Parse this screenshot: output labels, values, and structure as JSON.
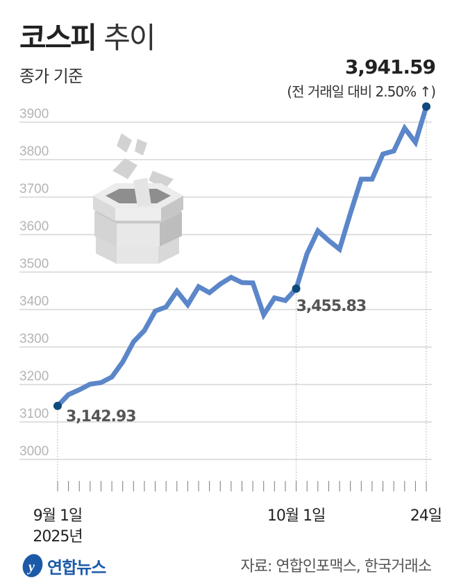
{
  "header": {
    "title_bold": "코스피",
    "title_light": "추이",
    "subtitle": "종가 기준",
    "last_value": "3,941.59",
    "change": "(전 거래일 대비 2.50% ↑)"
  },
  "footer": {
    "logo_text": "연합뉴스",
    "source": "자료: 연합인포맥스, 한국거래소"
  },
  "colors": {
    "line": "#5b86c9",
    "marker": "#0f4a7a",
    "grid": "#d6d6d6",
    "tick_label": "#b4b4b4"
  },
  "chart_data": {
    "type": "line",
    "title": "코스피 추이",
    "subtitle": "종가 기준",
    "ylim": [
      3000,
      3900
    ],
    "yticks": [
      3000,
      3100,
      3200,
      3300,
      3400,
      3500,
      3600,
      3700,
      3800,
      3900
    ],
    "grid": true,
    "x_labels": [
      {
        "index": 0,
        "label": "9월 1일",
        "sub": "2025년"
      },
      {
        "index": 22,
        "label": "10월 1일"
      },
      {
        "index": 34,
        "label": "24일"
      }
    ],
    "dates": [
      "2025-09-01",
      "2025-09-02",
      "2025-09-03",
      "2025-09-04",
      "2025-09-05",
      "2025-09-08",
      "2025-09-09",
      "2025-09-10",
      "2025-09-11",
      "2025-09-12",
      "2025-09-15",
      "2025-09-16",
      "2025-09-17",
      "2025-09-18",
      "2025-09-19",
      "2025-09-22",
      "2025-09-23",
      "2025-09-24",
      "2025-09-25",
      "2025-09-26",
      "2025-09-29",
      "2025-09-30",
      "2025-10-01",
      "2025-10-02",
      "2025-10-10",
      "2025-10-13",
      "2025-10-14",
      "2025-10-15",
      "2025-10-16",
      "2025-10-17",
      "2025-10-20",
      "2025-10-21",
      "2025-10-22",
      "2025-10-23",
      "2025-10-24"
    ],
    "values": [
      3142.93,
      3173,
      3186,
      3201,
      3205,
      3220,
      3260,
      3314,
      3344,
      3396,
      3407,
      3449,
      3413,
      3461,
      3445,
      3468,
      3486,
      3472,
      3471,
      3386,
      3431,
      3424,
      3455.83,
      3549,
      3610,
      3584,
      3561,
      3657,
      3748,
      3748,
      3815,
      3823,
      3884,
      3846,
      3941.59
    ],
    "annotations": [
      {
        "index": 0,
        "text": "3,142.93"
      },
      {
        "index": 22,
        "text": "3,455.83"
      },
      {
        "index": 34,
        "text": "3,941.59"
      }
    ]
  }
}
